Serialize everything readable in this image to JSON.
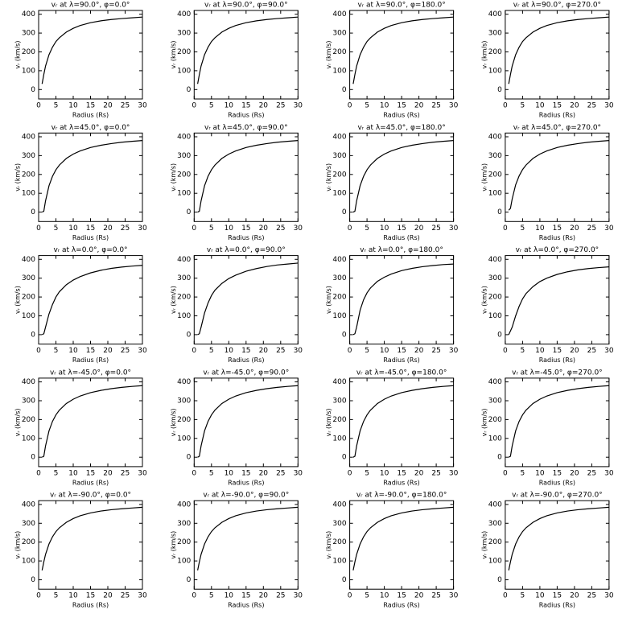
{
  "chart_data": [
    {
      "type": "line",
      "title": "vᵣ at λ=90.0°, φ=0.0°",
      "x_label": "Radius (Rs)",
      "y_label": "vᵣ (km/s)",
      "x": [
        1,
        1.5,
        2,
        3,
        4,
        5,
        6,
        8,
        10,
        12,
        15,
        18,
        21,
        24,
        27,
        30
      ],
      "values": [
        30,
        80,
        125,
        185,
        225,
        255,
        275,
        305,
        325,
        340,
        355,
        365,
        372,
        377,
        381,
        385
      ],
      "color": "#000000",
      "xlim": [
        0,
        30
      ],
      "ylim": [
        -50,
        420
      ],
      "xticks": [
        0,
        5,
        10,
        15,
        20,
        25,
        30
      ],
      "yticks": [
        0,
        100,
        200,
        300,
        400
      ],
      "grid": false
    },
    {
      "type": "line",
      "title": "vᵣ at λ=90.0°, φ=90.0°",
      "x_label": "Radius (Rs)",
      "y_label": "vᵣ (km/s)",
      "x": [
        1,
        1.5,
        2,
        3,
        4,
        5,
        6,
        8,
        10,
        12,
        15,
        18,
        21,
        24,
        27,
        30
      ],
      "values": [
        30,
        80,
        125,
        185,
        225,
        255,
        275,
        305,
        325,
        340,
        355,
        365,
        372,
        377,
        381,
        385
      ],
      "color": "#000000",
      "xlim": [
        0,
        30
      ],
      "ylim": [
        -50,
        420
      ],
      "xticks": [
        0,
        5,
        10,
        15,
        20,
        25,
        30
      ],
      "yticks": [
        0,
        100,
        200,
        300,
        400
      ],
      "grid": false
    },
    {
      "type": "line",
      "title": "vᵣ at λ=90.0°, φ=180.0°",
      "x_label": "Radius (Rs)",
      "y_label": "vᵣ (km/s)",
      "x": [
        1,
        1.5,
        2,
        3,
        4,
        5,
        6,
        8,
        10,
        12,
        15,
        18,
        21,
        24,
        27,
        30
      ],
      "values": [
        30,
        80,
        125,
        185,
        225,
        255,
        275,
        305,
        325,
        340,
        355,
        365,
        372,
        377,
        381,
        385
      ],
      "color": "#000000",
      "xlim": [
        0,
        30
      ],
      "ylim": [
        -50,
        420
      ],
      "xticks": [
        0,
        5,
        10,
        15,
        20,
        25,
        30
      ],
      "yticks": [
        0,
        100,
        200,
        300,
        400
      ],
      "grid": false
    },
    {
      "type": "line",
      "title": "vᵣ at λ=90.0°, φ=270.0°",
      "x_label": "Radius (Rs)",
      "y_label": "vᵣ (km/s)",
      "x": [
        1,
        1.5,
        2,
        3,
        4,
        5,
        6,
        8,
        10,
        12,
        15,
        18,
        21,
        24,
        27,
        30
      ],
      "values": [
        30,
        80,
        125,
        185,
        225,
        255,
        275,
        305,
        325,
        340,
        355,
        365,
        372,
        377,
        381,
        385
      ],
      "color": "#000000",
      "xlim": [
        0,
        30
      ],
      "ylim": [
        -50,
        420
      ],
      "xticks": [
        0,
        5,
        10,
        15,
        20,
        25,
        30
      ],
      "yticks": [
        0,
        100,
        200,
        300,
        400
      ],
      "grid": false
    },
    {
      "type": "line",
      "title": "vᵣ at λ=45.0°, φ=0.0°",
      "x_label": "Radius (Rs)",
      "y_label": "vᵣ (km/s)",
      "x": [
        1,
        1.5,
        2,
        3,
        4,
        5,
        6,
        8,
        10,
        12,
        15,
        18,
        21,
        24,
        27,
        30
      ],
      "values": [
        0,
        5,
        60,
        140,
        190,
        225,
        250,
        285,
        308,
        325,
        343,
        355,
        364,
        371,
        376,
        380
      ],
      "color": "#000000",
      "xlim": [
        0,
        30
      ],
      "ylim": [
        -50,
        420
      ],
      "xticks": [
        0,
        5,
        10,
        15,
        20,
        25,
        30
      ],
      "yticks": [
        0,
        100,
        200,
        300,
        400
      ],
      "grid": false
    },
    {
      "type": "line",
      "title": "vᵣ at λ=45.0°, φ=90.0°",
      "x_label": "Radius (Rs)",
      "y_label": "vᵣ (km/s)",
      "x": [
        1,
        1.5,
        2,
        3,
        4,
        5,
        6,
        8,
        10,
        12,
        15,
        18,
        21,
        24,
        27,
        30
      ],
      "values": [
        0,
        5,
        60,
        140,
        190,
        225,
        250,
        285,
        308,
        325,
        343,
        355,
        364,
        371,
        376,
        380
      ],
      "color": "#000000",
      "xlim": [
        0,
        30
      ],
      "ylim": [
        -50,
        420
      ],
      "xticks": [
        0,
        5,
        10,
        15,
        20,
        25,
        30
      ],
      "yticks": [
        0,
        100,
        200,
        300,
        400
      ],
      "grid": false
    },
    {
      "type": "line",
      "title": "vᵣ at λ=45.0°, φ=180.0°",
      "x_label": "Radius (Rs)",
      "y_label": "vᵣ (km/s)",
      "x": [
        1,
        1.5,
        2,
        3,
        4,
        5,
        6,
        8,
        10,
        12,
        15,
        18,
        21,
        24,
        27,
        30
      ],
      "values": [
        0,
        5,
        60,
        140,
        190,
        225,
        250,
        285,
        308,
        325,
        343,
        355,
        364,
        371,
        376,
        380
      ],
      "color": "#000000",
      "xlim": [
        0,
        30
      ],
      "ylim": [
        -50,
        420
      ],
      "xticks": [
        0,
        5,
        10,
        15,
        20,
        25,
        30
      ],
      "yticks": [
        0,
        100,
        200,
        300,
        400
      ],
      "grid": false
    },
    {
      "type": "line",
      "title": "vᵣ at λ=45.0°, φ=270.0°",
      "x_label": "Radius (Rs)",
      "y_label": "vᵣ (km/s)",
      "x": [
        1,
        1.5,
        2,
        3,
        4,
        5,
        6,
        8,
        10,
        12,
        15,
        18,
        21,
        24,
        27,
        30
      ],
      "values": [
        10,
        20,
        70,
        145,
        192,
        226,
        250,
        285,
        308,
        325,
        343,
        355,
        364,
        371,
        376,
        380
      ],
      "color": "#000000",
      "xlim": [
        0,
        30
      ],
      "ylim": [
        -50,
        420
      ],
      "xticks": [
        0,
        5,
        10,
        15,
        20,
        25,
        30
      ],
      "yticks": [
        0,
        100,
        200,
        300,
        400
      ],
      "grid": false
    },
    {
      "type": "line",
      "title": "vᵣ at λ=0.0°, φ=0.0°",
      "x_label": "Radius (Rs)",
      "y_label": "vᵣ (km/s)",
      "x": [
        1,
        1.5,
        2,
        3,
        4,
        5,
        6,
        8,
        10,
        12,
        15,
        18,
        21,
        24,
        27,
        30
      ],
      "values": [
        0,
        5,
        40,
        110,
        160,
        200,
        228,
        265,
        290,
        308,
        328,
        342,
        352,
        359,
        364,
        368
      ],
      "color": "#000000",
      "xlim": [
        0,
        30
      ],
      "ylim": [
        -50,
        420
      ],
      "xticks": [
        0,
        5,
        10,
        15,
        20,
        25,
        30
      ],
      "yticks": [
        0,
        100,
        200,
        300,
        400
      ],
      "grid": false
    },
    {
      "type": "line",
      "title": "vᵣ at λ=0.0°, φ=90.0°",
      "x_label": "Radius (Rs)",
      "y_label": "vᵣ (km/s)",
      "x": [
        1,
        1.5,
        2,
        3,
        4,
        5,
        6,
        8,
        10,
        12,
        15,
        18,
        21,
        24,
        27,
        30
      ],
      "values": [
        0,
        5,
        40,
        115,
        168,
        208,
        236,
        272,
        298,
        316,
        337,
        351,
        362,
        370,
        375,
        380
      ],
      "color": "#000000",
      "xlim": [
        0,
        30
      ],
      "ylim": [
        -50,
        420
      ],
      "xticks": [
        0,
        5,
        10,
        15,
        20,
        25,
        30
      ],
      "yticks": [
        0,
        100,
        200,
        300,
        400
      ],
      "grid": false
    },
    {
      "type": "line",
      "title": "vᵣ at λ=0.0°, φ=180.0°",
      "x_label": "Radius (Rs)",
      "y_label": "vᵣ (km/s)",
      "x": [
        1,
        1.5,
        2,
        3,
        4,
        5,
        6,
        8,
        10,
        12,
        15,
        18,
        21,
        24,
        27,
        30
      ],
      "values": [
        0,
        5,
        40,
        130,
        185,
        222,
        248,
        283,
        305,
        322,
        340,
        352,
        361,
        367,
        372,
        375
      ],
      "color": "#000000",
      "xlim": [
        0,
        30
      ],
      "ylim": [
        -50,
        420
      ],
      "xticks": [
        0,
        5,
        10,
        15,
        20,
        25,
        30
      ],
      "yticks": [
        0,
        100,
        200,
        300,
        400
      ],
      "grid": false
    },
    {
      "type": "line",
      "title": "vᵣ at λ=0.0°, φ=270.0°",
      "x_label": "Radius (Rs)",
      "y_label": "vᵣ (km/s)",
      "x": [
        1,
        1.5,
        2,
        3,
        4,
        5,
        6,
        8,
        10,
        12,
        15,
        18,
        21,
        24,
        27,
        30
      ],
      "values": [
        0,
        20,
        40,
        100,
        150,
        190,
        218,
        255,
        282,
        300,
        320,
        334,
        344,
        351,
        356,
        360
      ],
      "color": "#000000",
      "xlim": [
        0,
        30
      ],
      "ylim": [
        -50,
        420
      ],
      "xticks": [
        0,
        5,
        10,
        15,
        20,
        25,
        30
      ],
      "yticks": [
        0,
        100,
        200,
        300,
        400
      ],
      "grid": false
    },
    {
      "type": "line",
      "title": "vᵣ at λ=-45.0°, φ=0.0°",
      "x_label": "Radius (Rs)",
      "y_label": "vᵣ (km/s)",
      "x": [
        1,
        1.5,
        2,
        3,
        4,
        5,
        6,
        8,
        10,
        12,
        15,
        18,
        21,
        24,
        27,
        30
      ],
      "values": [
        0,
        5,
        60,
        140,
        190,
        225,
        250,
        285,
        308,
        325,
        343,
        355,
        364,
        371,
        376,
        380
      ],
      "color": "#000000",
      "xlim": [
        0,
        30
      ],
      "ylim": [
        -50,
        420
      ],
      "xticks": [
        0,
        5,
        10,
        15,
        20,
        25,
        30
      ],
      "yticks": [
        0,
        100,
        200,
        300,
        400
      ],
      "grid": false
    },
    {
      "type": "line",
      "title": "vᵣ at λ=-45.0°, φ=90.0°",
      "x_label": "Radius (Rs)",
      "y_label": "vᵣ (km/s)",
      "x": [
        1,
        1.5,
        2,
        3,
        4,
        5,
        6,
        8,
        10,
        12,
        15,
        18,
        21,
        24,
        27,
        30
      ],
      "values": [
        0,
        5,
        60,
        140,
        190,
        225,
        250,
        285,
        308,
        325,
        343,
        355,
        364,
        371,
        376,
        380
      ],
      "color": "#000000",
      "xlim": [
        0,
        30
      ],
      "ylim": [
        -50,
        420
      ],
      "xticks": [
        0,
        5,
        10,
        15,
        20,
        25,
        30
      ],
      "yticks": [
        0,
        100,
        200,
        300,
        400
      ],
      "grid": false
    },
    {
      "type": "line",
      "title": "vᵣ at λ=-45.0°, φ=180.0°",
      "x_label": "Radius (Rs)",
      "y_label": "vᵣ (km/s)",
      "x": [
        1,
        1.5,
        2,
        3,
        4,
        5,
        6,
        8,
        10,
        12,
        15,
        18,
        21,
        24,
        27,
        30
      ],
      "values": [
        0,
        5,
        60,
        140,
        190,
        225,
        250,
        285,
        308,
        325,
        343,
        355,
        364,
        371,
        376,
        380
      ],
      "color": "#000000",
      "xlim": [
        0,
        30
      ],
      "ylim": [
        -50,
        420
      ],
      "xticks": [
        0,
        5,
        10,
        15,
        20,
        25,
        30
      ],
      "yticks": [
        0,
        100,
        200,
        300,
        400
      ],
      "grid": false
    },
    {
      "type": "line",
      "title": "vᵣ at λ=-45.0°, φ=270.0°",
      "x_label": "Radius (Rs)",
      "y_label": "vᵣ (km/s)",
      "x": [
        1,
        1.5,
        2,
        3,
        4,
        5,
        6,
        8,
        10,
        12,
        15,
        18,
        21,
        24,
        27,
        30
      ],
      "values": [
        0,
        5,
        60,
        140,
        190,
        225,
        250,
        285,
        308,
        325,
        343,
        355,
        364,
        371,
        376,
        380
      ],
      "color": "#000000",
      "xlim": [
        0,
        30
      ],
      "ylim": [
        -50,
        420
      ],
      "xticks": [
        0,
        5,
        10,
        15,
        20,
        25,
        30
      ],
      "yticks": [
        0,
        100,
        200,
        300,
        400
      ],
      "grid": false
    },
    {
      "type": "line",
      "title": "vᵣ at λ=-90.0°, φ=0.0°",
      "x_label": "Radius (Rs)",
      "y_label": "vᵣ (km/s)",
      "x": [
        1,
        1.5,
        2,
        3,
        4,
        5,
        6,
        8,
        10,
        12,
        15,
        18,
        21,
        24,
        27,
        30
      ],
      "values": [
        50,
        95,
        135,
        190,
        228,
        256,
        276,
        305,
        325,
        340,
        355,
        365,
        372,
        377,
        381,
        385
      ],
      "color": "#000000",
      "xlim": [
        0,
        30
      ],
      "ylim": [
        -50,
        420
      ],
      "xticks": [
        0,
        5,
        10,
        15,
        20,
        25,
        30
      ],
      "yticks": [
        0,
        100,
        200,
        300,
        400
      ],
      "grid": false
    },
    {
      "type": "line",
      "title": "vᵣ at λ=-90.0°, φ=90.0°",
      "x_label": "Radius (Rs)",
      "y_label": "vᵣ (km/s)",
      "x": [
        1,
        1.5,
        2,
        3,
        4,
        5,
        6,
        8,
        10,
        12,
        15,
        18,
        21,
        24,
        27,
        30
      ],
      "values": [
        50,
        95,
        135,
        190,
        228,
        256,
        276,
        305,
        325,
        340,
        355,
        365,
        372,
        377,
        381,
        385
      ],
      "color": "#000000",
      "xlim": [
        0,
        30
      ],
      "ylim": [
        -50,
        420
      ],
      "xticks": [
        0,
        5,
        10,
        15,
        20,
        25,
        30
      ],
      "yticks": [
        0,
        100,
        200,
        300,
        400
      ],
      "grid": false
    },
    {
      "type": "line",
      "title": "vᵣ at λ=-90.0°, φ=180.0°",
      "x_label": "Radius (Rs)",
      "y_label": "vᵣ (km/s)",
      "x": [
        1,
        1.5,
        2,
        3,
        4,
        5,
        6,
        8,
        10,
        12,
        15,
        18,
        21,
        24,
        27,
        30
      ],
      "values": [
        50,
        95,
        135,
        190,
        228,
        256,
        276,
        305,
        325,
        340,
        355,
        365,
        372,
        377,
        381,
        385
      ],
      "color": "#000000",
      "xlim": [
        0,
        30
      ],
      "ylim": [
        -50,
        420
      ],
      "xticks": [
        0,
        5,
        10,
        15,
        20,
        25,
        30
      ],
      "yticks": [
        0,
        100,
        200,
        300,
        400
      ],
      "grid": false
    },
    {
      "type": "line",
      "title": "vᵣ at λ=-90.0°, φ=270.0°",
      "x_label": "Radius (Rs)",
      "y_label": "vᵣ (km/s)",
      "x": [
        1,
        1.5,
        2,
        3,
        4,
        5,
        6,
        8,
        10,
        12,
        15,
        18,
        21,
        24,
        27,
        30
      ],
      "values": [
        50,
        95,
        135,
        190,
        228,
        256,
        276,
        305,
        325,
        340,
        355,
        365,
        372,
        377,
        381,
        385
      ],
      "color": "#000000",
      "xlim": [
        0,
        30
      ],
      "ylim": [
        -50,
        420
      ],
      "xticks": [
        0,
        5,
        10,
        15,
        20,
        25,
        30
      ],
      "yticks": [
        0,
        100,
        200,
        300,
        400
      ],
      "grid": false
    }
  ]
}
